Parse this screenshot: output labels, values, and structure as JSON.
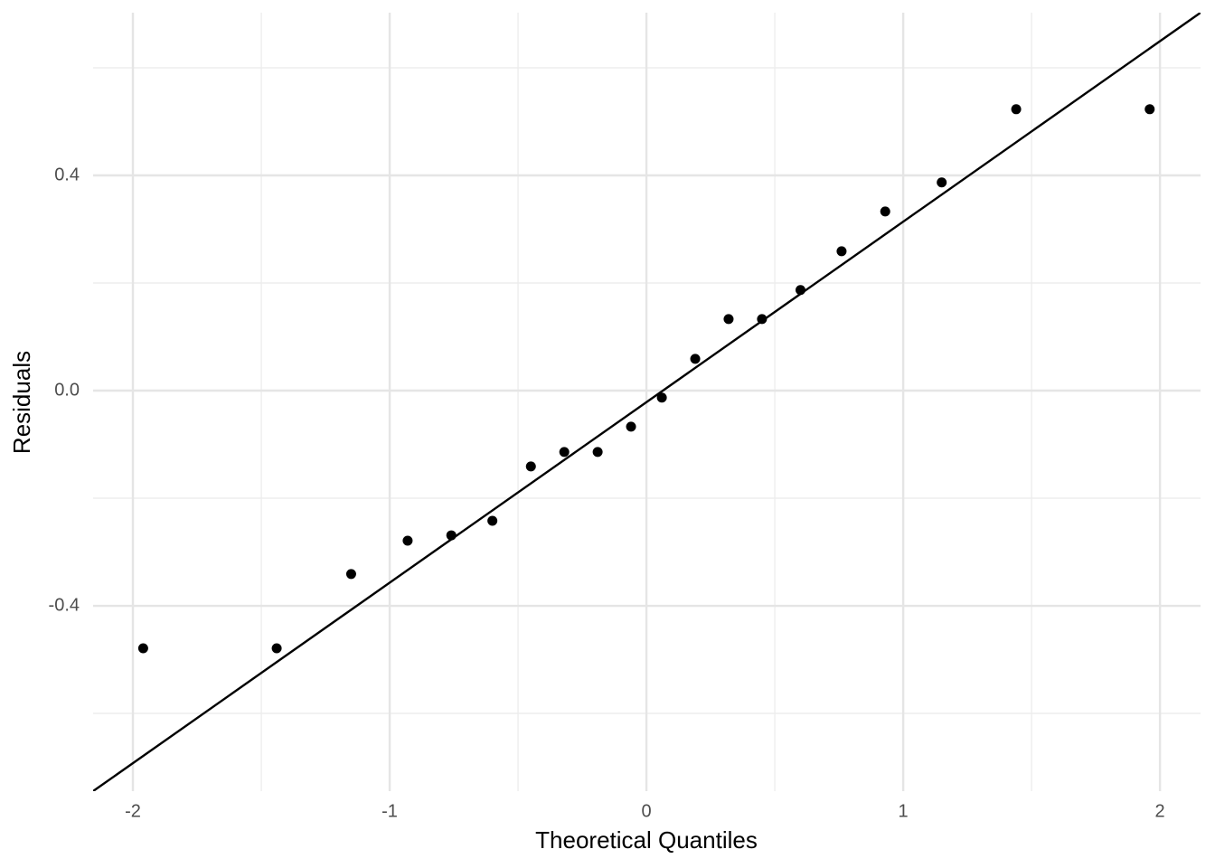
{
  "chart_data": {
    "type": "qq",
    "x_label": "Theoretical Quantiles",
    "y_label": "Residuals",
    "x": [
      -1.96,
      -1.44,
      -1.15,
      -0.93,
      -0.76,
      -0.6,
      -0.45,
      -0.32,
      -0.19,
      -0.06,
      0.06,
      0.19,
      0.32,
      0.45,
      0.6,
      0.76,
      0.93,
      1.15,
      1.44,
      1.96
    ],
    "values": [
      -0.479,
      -0.479,
      -0.341,
      -0.279,
      -0.269,
      -0.242,
      -0.141,
      -0.114,
      -0.114,
      -0.067,
      -0.013,
      0.059,
      0.133,
      0.133,
      0.187,
      0.259,
      0.333,
      0.387,
      0.523,
      0.523
    ],
    "color": "#000000",
    "reference_line": {
      "slope": 0.3355,
      "intercept": -0.0215,
      "color": "#000000"
    },
    "xlim": [
      -2.155,
      2.158
    ],
    "ylim": [
      -0.7445,
      0.7025
    ],
    "xticks": [
      -2,
      -1,
      0,
      1,
      2
    ],
    "yticks": [
      {
        "value": -0.4,
        "label": "-0.4"
      },
      {
        "value": 0,
        "label": "0.0"
      },
      {
        "value": 0.4,
        "label": "0.4"
      }
    ],
    "x_minor_ticks": [
      -1.5,
      -0.5,
      0.5,
      1.5
    ],
    "y_minor_ticks": [
      -0.6,
      -0.2,
      0.2,
      0.6
    ],
    "grid": true
  }
}
